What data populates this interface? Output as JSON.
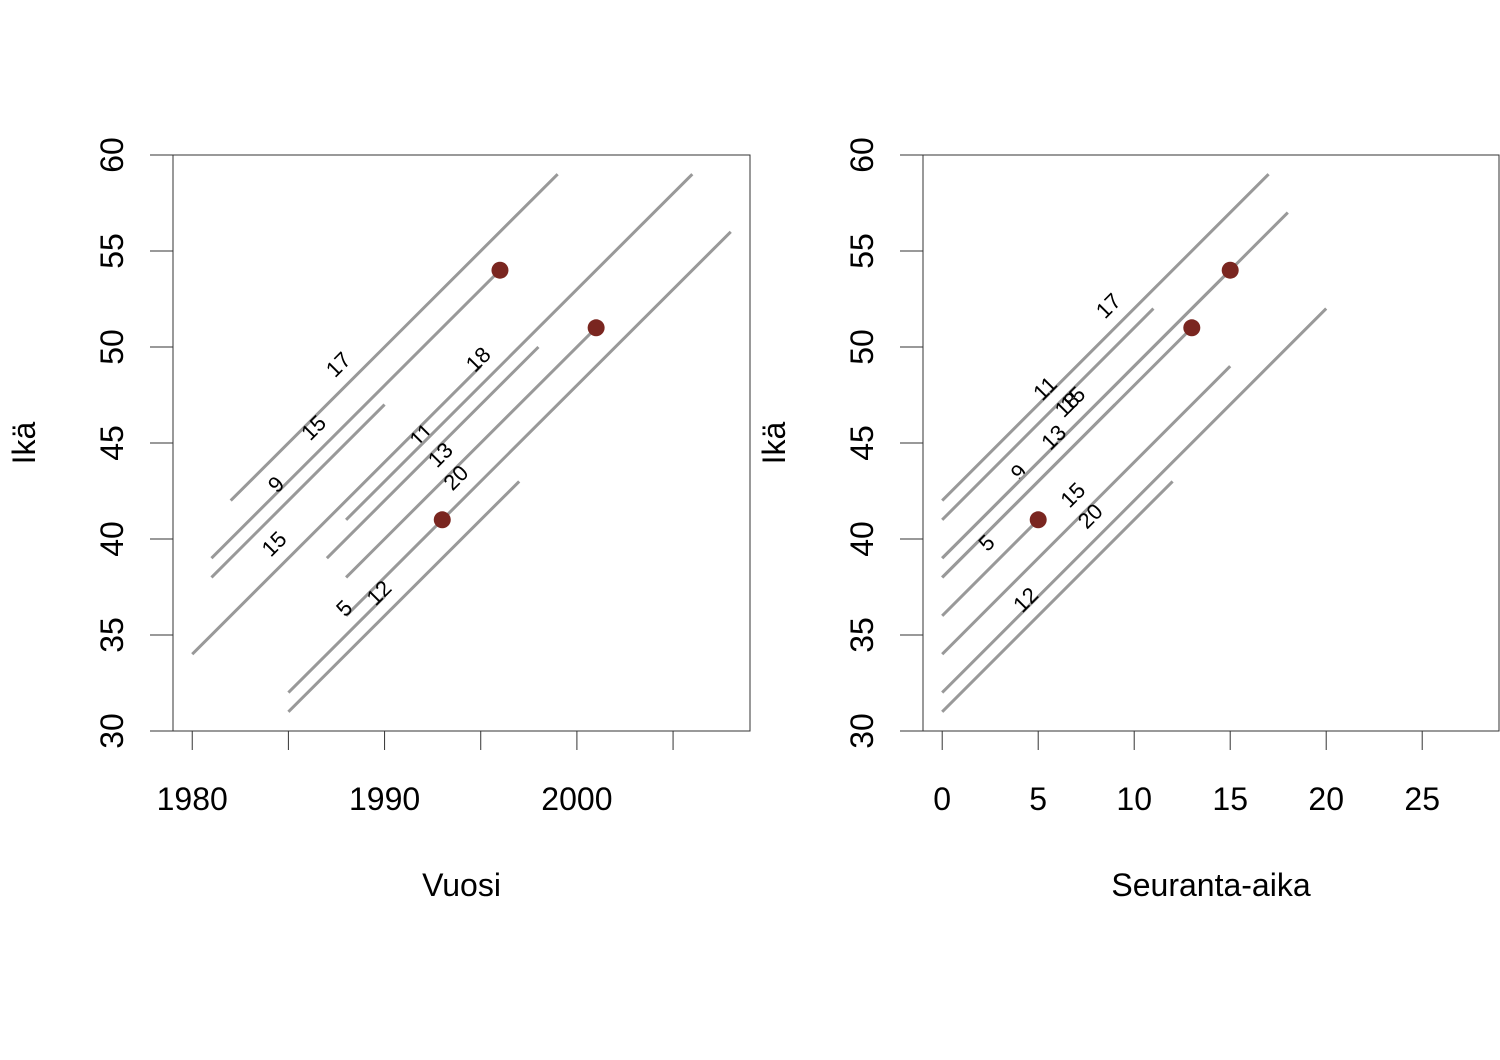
{
  "chart_data": [
    {
      "type": "line",
      "panel": "left",
      "xlabel": "Vuosi",
      "ylabel": "Ikä",
      "xlim": [
        1979,
        2009
      ],
      "ylim": [
        30,
        60
      ],
      "x_ticks": [
        1980,
        1985,
        1990,
        1995,
        2000,
        2005
      ],
      "x_tick_labels": [
        "1980",
        "",
        "1990",
        "",
        "2000",
        ""
      ],
      "y_ticks": [
        30,
        35,
        40,
        45,
        50,
        55,
        60
      ],
      "y_tick_labels": [
        "30",
        "35",
        "40",
        "45",
        "50",
        "55",
        "60"
      ],
      "segments": [
        {
          "x": [
            1982,
            1999
          ],
          "y": [
            42,
            59
          ],
          "label": "17"
        },
        {
          "x": [
            1981,
            1996
          ],
          "y": [
            39,
            54
          ],
          "label": "15"
        },
        {
          "x": [
            1981,
            1990
          ],
          "y": [
            38,
            47
          ],
          "label": "9"
        },
        {
          "x": [
            1980,
            1995
          ],
          "y": [
            34,
            49
          ],
          "label": "15"
        },
        {
          "x": [
            1987,
            1998
          ],
          "y": [
            39,
            50
          ],
          "label": "11"
        },
        {
          "x": [
            1988,
            2006
          ],
          "y": [
            41,
            59
          ],
          "label": "18"
        },
        {
          "x": [
            1988,
            2001
          ],
          "y": [
            38,
            51
          ],
          "label": "13"
        },
        {
          "x": [
            1988,
            2008
          ],
          "y": [
            36,
            56
          ],
          "label": "20"
        },
        {
          "x": [
            1985,
            1990
          ],
          "y": [
            32,
            37
          ],
          "label": "5"
        },
        {
          "x": [
            1985,
            1997
          ],
          "y": [
            31,
            43
          ],
          "label": "12"
        }
      ],
      "points": [
        {
          "x": 1996,
          "y": 54
        },
        {
          "x": 2001,
          "y": 51
        },
        {
          "x": 1993,
          "y": 41
        }
      ],
      "grid": false,
      "point_color": "#7a2620",
      "line_color": "#999999"
    },
    {
      "type": "line",
      "panel": "right",
      "xlabel": "Seuranta-aika",
      "ylabel": "Ikä",
      "xlim": [
        -1,
        29
      ],
      "ylim": [
        30,
        60
      ],
      "x_ticks": [
        0,
        5,
        10,
        15,
        20,
        25
      ],
      "x_tick_labels": [
        "0",
        "5",
        "10",
        "15",
        "20",
        "25"
      ],
      "y_ticks": [
        30,
        35,
        40,
        45,
        50,
        55,
        60
      ],
      "y_tick_labels": [
        "30",
        "35",
        "40",
        "45",
        "50",
        "55",
        "60"
      ],
      "segments": [
        {
          "x": [
            0,
            17
          ],
          "y": [
            42,
            59
          ],
          "label": "17"
        },
        {
          "x": [
            0,
            11
          ],
          "y": [
            41,
            52
          ],
          "label": "11"
        },
        {
          "x": [
            0,
            9
          ],
          "y": [
            38,
            47
          ],
          "label": "9"
        },
        {
          "x": [
            0,
            15
          ],
          "y": [
            39,
            54
          ],
          "label": "15"
        },
        {
          "x": [
            0,
            18
          ],
          "y": [
            39,
            57
          ],
          "label": "18"
        },
        {
          "x": [
            0,
            13
          ],
          "y": [
            38,
            51
          ],
          "label": "13"
        },
        {
          "x": [
            0,
            5
          ],
          "y": [
            36,
            41
          ],
          "label": "5"
        },
        {
          "x": [
            0,
            15
          ],
          "y": [
            34,
            49
          ],
          "label": "15"
        },
        {
          "x": [
            0,
            20
          ],
          "y": [
            32,
            52
          ],
          "label": "20"
        },
        {
          "x": [
            0,
            12
          ],
          "y": [
            31,
            43
          ],
          "label": "12"
        }
      ],
      "points": [
        {
          "x": 15,
          "y": 54
        },
        {
          "x": 13,
          "y": 51
        },
        {
          "x": 5,
          "y": 41
        }
      ],
      "grid": false,
      "point_color": "#7a2620",
      "line_color": "#999999"
    }
  ]
}
